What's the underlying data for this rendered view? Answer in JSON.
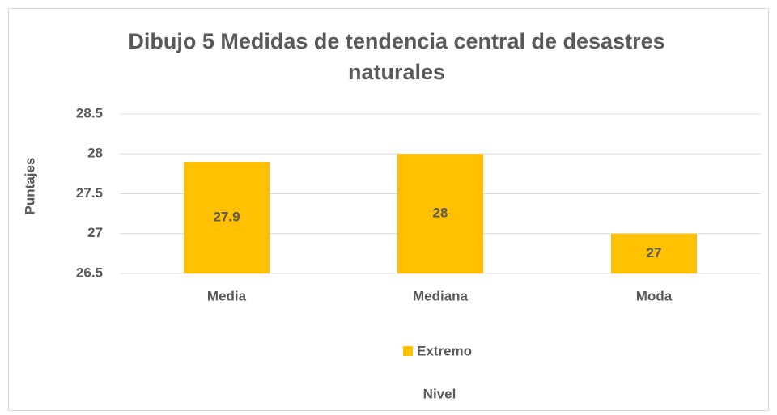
{
  "chart_data": {
    "type": "bar",
    "title": "Dibujo 5 Medidas de tendencia central de desastres naturales",
    "y_label": "Puntajes",
    "x_label": "Nivel",
    "categories": [
      "Media",
      "Mediana",
      "Moda"
    ],
    "series": [
      {
        "name": "Extremo",
        "color": "#ffc000",
        "values": [
          27.9,
          28,
          27
        ]
      }
    ],
    "ylim": [
      26.5,
      28.5
    ],
    "yticks": [
      26.5,
      27,
      27.5,
      28,
      28.5
    ],
    "grid": true,
    "legend": "bottom"
  }
}
